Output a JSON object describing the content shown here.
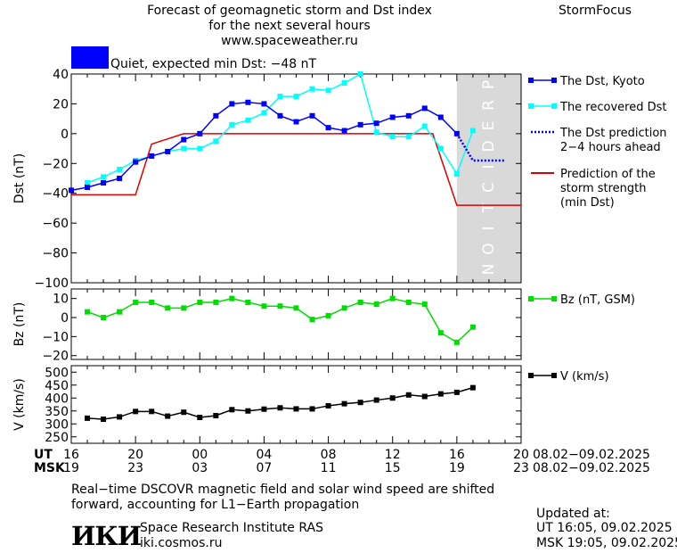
{
  "header": {
    "title_lines": [
      "Forecast of geomagnetic storm and Dst index",
      "for the next several hours",
      "www.spaceweather.ru"
    ],
    "brand": "StormFocus",
    "status_text": "Quiet, expected min Dst: −48 nT",
    "status_color": "#0000ff"
  },
  "footer": {
    "note_lines": [
      "Real−time DSCOVR magnetic field and solar wind speed are shifted",
      "forward, accounting for L1−Earth propagation"
    ],
    "institute": "Space Research Institute RAS",
    "institute_url": "iki.cosmos.ru",
    "logo_text": "ИКИ",
    "updated_label": "Updated at:",
    "updated_ut": "UT   16:05, 09.02.2025",
    "updated_msk": "MSK 19:05, 09.02.2025"
  },
  "time_axis": {
    "ut_label": "UT",
    "msk_label": "MSK",
    "ut_ticks": [
      "16",
      "20",
      "00",
      "04",
      "08",
      "12",
      "16",
      "20"
    ],
    "msk_ticks": [
      "19",
      "23",
      "03",
      "07",
      "11",
      "15",
      "19",
      "23"
    ],
    "ut_range": "08.02−09.02.2025",
    "msk_range": "08.02−09.02.2025"
  },
  "chart_data": [
    {
      "type": "line",
      "panel": "dst",
      "ylabel": "Dst (nT)",
      "ylim": [
        -100,
        40
      ],
      "yticks": [
        40,
        20,
        0,
        -20,
        -40,
        -60,
        -80,
        -100
      ],
      "x_unit": "hours since 16 UT 08.02.2025",
      "xlim": [
        0,
        28
      ],
      "prediction_label": "PREDICTION",
      "prediction_range": [
        24,
        28
      ],
      "series": [
        {
          "name": "The Dst, Kyoto",
          "color": "#0000ff",
          "marker": "square",
          "style": "solid",
          "x": [
            0,
            1,
            2,
            3,
            4,
            5,
            6,
            7,
            8,
            9,
            10,
            11,
            12,
            13,
            14,
            15,
            16,
            17,
            18,
            19,
            20,
            21,
            22,
            23,
            24
          ],
          "values": [
            -38,
            -36,
            -33,
            -30,
            -19,
            -15,
            -12,
            -4,
            0,
            12,
            20,
            21,
            20,
            12,
            8,
            12,
            4,
            2,
            6,
            7,
            11,
            12,
            17,
            11,
            0
          ]
        },
        {
          "name": "The recovered Dst",
          "color": "#00ffff",
          "marker": "square",
          "style": "solid",
          "x": [
            1,
            2,
            3,
            4,
            5,
            6,
            7,
            8,
            9,
            10,
            11,
            12,
            13,
            14,
            15,
            16,
            17,
            18,
            19,
            20,
            21,
            22,
            23,
            24,
            25
          ],
          "values": [
            -33,
            -29,
            -24,
            -18,
            -15,
            -12,
            -10,
            -10,
            -5,
            6,
            9,
            14,
            25,
            25,
            30,
            29,
            34,
            40,
            1,
            -2,
            -2,
            5,
            -10,
            -27,
            2
          ]
        },
        {
          "name": "The Dst prediction",
          "name_line2": "2−4 hours ahead",
          "color": "#0000ff",
          "style": "dotted",
          "x": [
            24,
            25,
            26,
            27
          ],
          "values": [
            0,
            -18,
            -18,
            -18
          ]
        },
        {
          "name": "Prediction of the",
          "name_line2": "storm strength",
          "name_line3": "(min Dst)",
          "color": "#dd0000",
          "style": "step",
          "x": [
            0,
            4,
            5,
            7,
            8,
            22.5,
            24,
            28
          ],
          "values": [
            -41,
            -41,
            -7,
            0,
            0,
            0,
            -48,
            -48
          ]
        }
      ]
    },
    {
      "type": "line",
      "panel": "bz",
      "ylabel": "Bz (nT)",
      "ylim": [
        -22,
        15
      ],
      "yticks": [
        10,
        0,
        -10,
        -20
      ],
      "series": [
        {
          "name": "Bz (nT, GSM)",
          "color": "#00dd00",
          "marker": "square",
          "x": [
            1,
            2,
            3,
            4,
            5,
            6,
            7,
            8,
            9,
            10,
            11,
            12,
            13,
            14,
            15,
            16,
            17,
            18,
            19,
            20,
            21,
            22,
            23,
            24,
            25
          ],
          "values": [
            3,
            0,
            3,
            8,
            8,
            5,
            5,
            8,
            8,
            10,
            8,
            6,
            6,
            5,
            -1,
            1,
            5,
            8,
            7,
            10,
            8,
            7,
            -8,
            -13,
            -5
          ]
        }
      ]
    },
    {
      "type": "line",
      "panel": "v",
      "ylabel": "V (km/s)",
      "ylim": [
        225,
        525
      ],
      "yticks": [
        500,
        450,
        400,
        350,
        300,
        250
      ],
      "series": [
        {
          "name": "V (km/s)",
          "color": "#000000",
          "marker": "square",
          "x": [
            1,
            2,
            3,
            4,
            5,
            6,
            7,
            8,
            9,
            10,
            11,
            12,
            13,
            14,
            15,
            16,
            17,
            18,
            19,
            20,
            21,
            22,
            23,
            24,
            25
          ],
          "values": [
            322,
            318,
            327,
            348,
            348,
            330,
            345,
            325,
            332,
            355,
            350,
            357,
            362,
            358,
            358,
            370,
            378,
            383,
            392,
            400,
            412,
            406,
            416,
            422,
            440
          ]
        }
      ]
    }
  ]
}
